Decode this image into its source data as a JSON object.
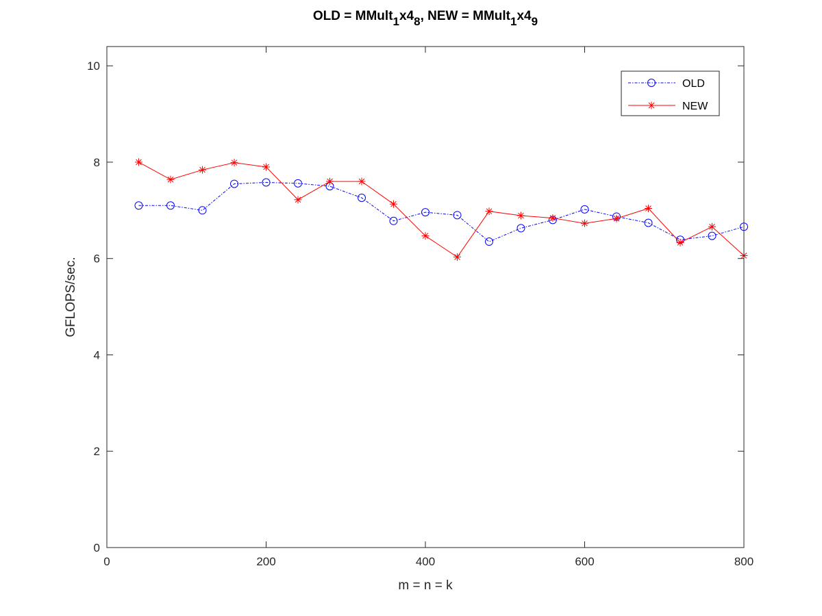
{
  "chart_data": {
    "type": "line",
    "title": {
      "parts": [
        {
          "text": "OLD = MMult",
          "sub": false
        },
        {
          "text": "1",
          "sub": true
        },
        {
          "text": "x4",
          "sub": false
        },
        {
          "text": "8",
          "sub": true
        },
        {
          "text": ", NEW = MMult",
          "sub": false
        },
        {
          "text": "1",
          "sub": true
        },
        {
          "text": "x4",
          "sub": false
        },
        {
          "text": "9",
          "sub": true
        }
      ]
    },
    "xlabel": "m = n = k",
    "ylabel": "GFLOPS/sec.",
    "xlim": [
      0,
      800
    ],
    "ylim": [
      0,
      10.4
    ],
    "xticks": [
      0,
      200,
      400,
      600,
      800
    ],
    "yticks": [
      0,
      2,
      4,
      6,
      8,
      10
    ],
    "grid": false,
    "legend_position": "top-right",
    "x": [
      40,
      80,
      120,
      160,
      200,
      240,
      280,
      320,
      360,
      400,
      440,
      480,
      520,
      560,
      600,
      640,
      680,
      720,
      760,
      800
    ],
    "series": [
      {
        "name": "OLD",
        "color": "#0000ff",
        "marker": "circle",
        "line": "dash-dot",
        "values": [
          7.1,
          7.1,
          7.0,
          7.55,
          7.58,
          7.56,
          7.5,
          7.26,
          6.78,
          6.96,
          6.9,
          6.35,
          6.63,
          6.8,
          7.02,
          6.87,
          6.74,
          6.39,
          6.47,
          6.66
        ]
      },
      {
        "name": "NEW",
        "color": "#ff0000",
        "marker": "asterisk",
        "line": "solid",
        "values": [
          8.0,
          7.64,
          7.84,
          7.99,
          7.9,
          7.22,
          7.6,
          7.6,
          7.13,
          6.47,
          6.03,
          6.98,
          6.89,
          6.84,
          6.73,
          6.83,
          7.04,
          6.33,
          6.66,
          6.06
        ]
      }
    ]
  }
}
